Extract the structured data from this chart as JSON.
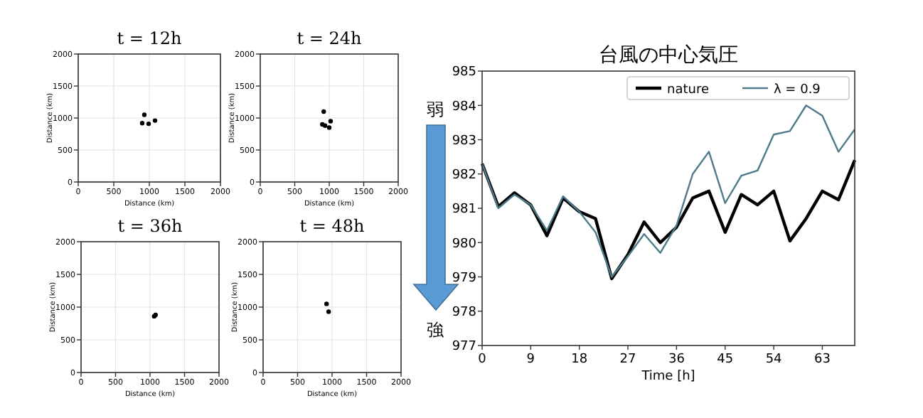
{
  "chart_data": [
    {
      "type": "scatter",
      "title": "t = 12h",
      "xlabel": "Distance (km)",
      "ylabel": "Distance (km)",
      "xlim": [
        0,
        2000
      ],
      "ylim": [
        0,
        2000
      ],
      "xticks": [
        0,
        500,
        1000,
        1500,
        2000
      ],
      "yticks": [
        0,
        500,
        1000,
        1500,
        2000
      ],
      "grid": true,
      "marker": "circle",
      "x": [
        930,
        900,
        990,
        1080
      ],
      "series": [
        {
          "color": "#000000",
          "values": [
            1050,
            920,
            910,
            960
          ]
        }
      ]
    },
    {
      "type": "scatter",
      "title": "t = 24h",
      "xlabel": "Distance (km)",
      "ylabel": "Distance (km)",
      "xlim": [
        0,
        2000
      ],
      "ylim": [
        0,
        2000
      ],
      "xticks": [
        0,
        500,
        1000,
        1500,
        2000
      ],
      "yticks": [
        0,
        500,
        1000,
        1500,
        2000
      ],
      "grid": true,
      "marker": "circle",
      "x": [
        920,
        900,
        940,
        1000,
        1020
      ],
      "series": [
        {
          "color": "#000000",
          "values": [
            1100,
            900,
            880,
            850,
            950
          ]
        }
      ]
    },
    {
      "type": "scatter",
      "title": "t = 36h",
      "xlabel": "Distance (km)",
      "ylabel": "Distance (km)",
      "xlim": [
        0,
        2000
      ],
      "ylim": [
        0,
        2000
      ],
      "xticks": [
        0,
        500,
        1000,
        1500,
        2000
      ],
      "yticks": [
        0,
        500,
        1000,
        1500,
        2000
      ],
      "grid": true,
      "marker": "circle",
      "x": [
        1080,
        1060
      ],
      "series": [
        {
          "color": "#000000",
          "values": [
            880,
            860
          ]
        }
      ]
    },
    {
      "type": "scatter",
      "title": "t = 48h",
      "xlabel": "Distance (km)",
      "ylabel": "Distance (km)",
      "xlim": [
        0,
        2000
      ],
      "ylim": [
        0,
        2000
      ],
      "xticks": [
        0,
        500,
        1000,
        1500,
        2000
      ],
      "yticks": [
        0,
        500,
        1000,
        1500,
        2000
      ],
      "grid": true,
      "marker": "circle",
      "x": [
        920,
        950
      ],
      "series": [
        {
          "color": "#000000",
          "values": [
            1050,
            930
          ]
        }
      ]
    },
    {
      "type": "line",
      "title": "台風の中心気圧",
      "xlabel": "Time [h]",
      "xlim": [
        0,
        69
      ],
      "xticks": [
        0,
        9,
        18,
        27,
        36,
        45,
        54,
        63
      ],
      "ylim": [
        977,
        985
      ],
      "yticks": [
        977,
        978,
        979,
        980,
        981,
        982,
        983,
        984,
        985
      ],
      "legend": "top right",
      "annotations": [
        "弱",
        "強"
      ],
      "x": [
        0,
        3,
        6,
        9,
        12,
        15,
        18,
        21,
        24,
        27,
        30,
        33,
        36,
        39,
        42,
        45,
        48,
        51,
        54,
        57,
        60,
        63,
        66,
        69
      ],
      "series": [
        {
          "name": "nature",
          "color": "#000000",
          "values": [
            982.3,
            981.05,
            981.45,
            981.1,
            980.2,
            981.3,
            980.9,
            980.7,
            978.95,
            979.65,
            980.6,
            980.0,
            980.45,
            981.3,
            981.5,
            980.3,
            981.4,
            981.1,
            981.5,
            980.05,
            980.7,
            981.5,
            981.25,
            982.4
          ]
        },
        {
          "name": "λ = 0.9",
          "color": "#4f7a8a",
          "values": [
            982.3,
            981.0,
            981.4,
            981.1,
            980.35,
            981.35,
            980.9,
            980.3,
            979.0,
            979.6,
            980.25,
            979.7,
            980.5,
            982.0,
            982.65,
            981.15,
            981.95,
            982.1,
            983.15,
            983.25,
            984.0,
            983.7,
            982.65,
            983.3
          ]
        }
      ]
    }
  ]
}
